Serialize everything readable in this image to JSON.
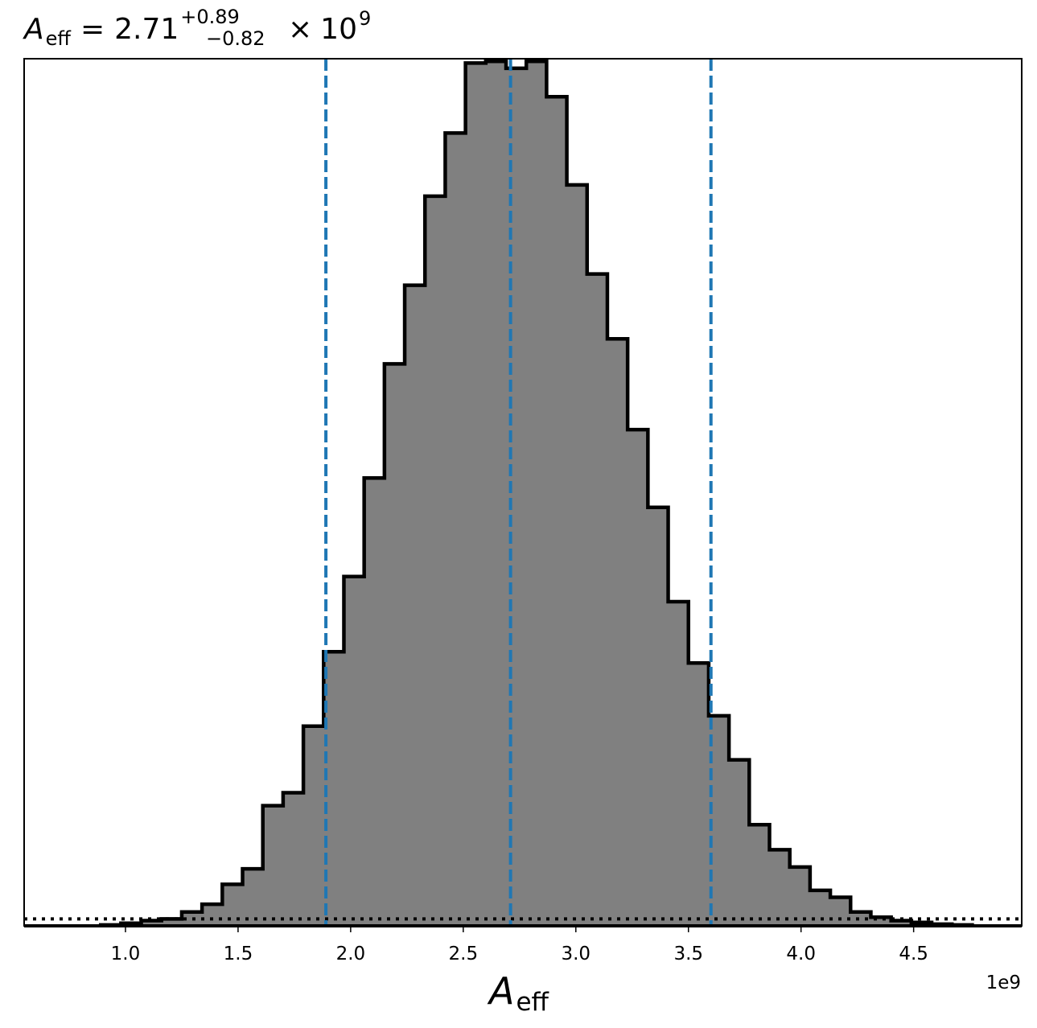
{
  "chart_data": {
    "type": "bar",
    "title": {
      "symbol": "A",
      "symbol_sub": "eff",
      "equals": "=",
      "median": "2.71",
      "upper_err": "+0.89",
      "lower_err": "−0.82",
      "times": "×",
      "base": "10",
      "exponent": "9"
    },
    "xlabel": {
      "symbol": "A",
      "sub": "eff"
    },
    "ylabel": "",
    "x_offset_label": "1e9",
    "xlim": [
      0.55,
      4.98
    ],
    "ylim": [
      0,
      1.003
    ],
    "xticks": [
      1.0,
      1.5,
      2.0,
      2.5,
      3.0,
      3.5,
      4.0,
      4.5
    ],
    "xtick_labels": [
      "1.0",
      "1.5",
      "2.0",
      "2.5",
      "3.0",
      "3.5",
      "4.0",
      "4.5"
    ],
    "bin_edges": [
      0.89,
      0.98,
      1.07,
      1.16,
      1.25,
      1.34,
      1.43,
      1.52,
      1.61,
      1.7,
      1.79,
      1.88,
      1.97,
      2.06,
      2.15,
      2.24,
      2.33,
      2.42,
      2.51,
      2.6,
      2.69,
      2.78,
      2.87,
      2.96,
      3.05,
      3.14,
      3.23,
      3.32,
      3.41,
      3.5,
      3.59,
      3.68,
      3.77,
      3.86,
      3.95,
      4.04,
      4.13,
      4.22,
      4.31,
      4.4,
      4.49,
      4.58,
      4.67,
      4.76
    ],
    "counts": [
      0.001,
      0.003,
      0.006,
      0.008,
      0.016,
      0.025,
      0.048,
      0.066,
      0.139,
      0.154,
      0.231,
      0.317,
      0.404,
      0.518,
      0.65,
      0.741,
      0.844,
      0.917,
      0.998,
      1.0,
      0.992,
      1.0,
      0.959,
      0.857,
      0.754,
      0.679,
      0.574,
      0.484,
      0.375,
      0.304,
      0.243,
      0.192,
      0.117,
      0.088,
      0.068,
      0.041,
      0.033,
      0.016,
      0.01,
      0.006,
      0.004,
      0.002,
      0.001
    ],
    "quantile_lines": [
      1.89,
      2.71,
      3.6
    ],
    "dotted_baseline": 0.008,
    "colors": {
      "fill": "#808080",
      "edge": "#000000",
      "quantile": "#1f77b4",
      "baseline": "#000000"
    }
  }
}
